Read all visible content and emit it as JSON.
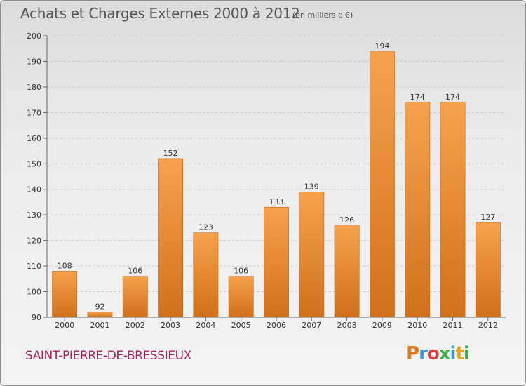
{
  "chart_data": {
    "type": "bar",
    "title": "Achats et Charges Externes 2000 à 2012",
    "subtitle": "(en milliers d'€)",
    "categories": [
      "2000",
      "2001",
      "2002",
      "2003",
      "2004",
      "2005",
      "2006",
      "2007",
      "2008",
      "2009",
      "2010",
      "2011",
      "2012"
    ],
    "values": [
      108,
      92,
      106,
      152,
      123,
      106,
      133,
      139,
      126,
      194,
      174,
      174,
      127
    ],
    "ylim": [
      90,
      200
    ],
    "yticks": [
      90,
      100,
      110,
      120,
      130,
      140,
      150,
      160,
      170,
      180,
      190,
      200
    ],
    "grid": true,
    "bar_color": "#f0922e"
  },
  "footer": {
    "place": "SAINT-PIERRE-DE-BRESSIEUX",
    "logo": "Proxiti",
    "logo_colors": [
      "#e07a1a",
      "#3a9ad9",
      "#d63c3c",
      "#3fae49",
      "#3a9ad9",
      "#e8a317",
      "#3fae49"
    ]
  }
}
